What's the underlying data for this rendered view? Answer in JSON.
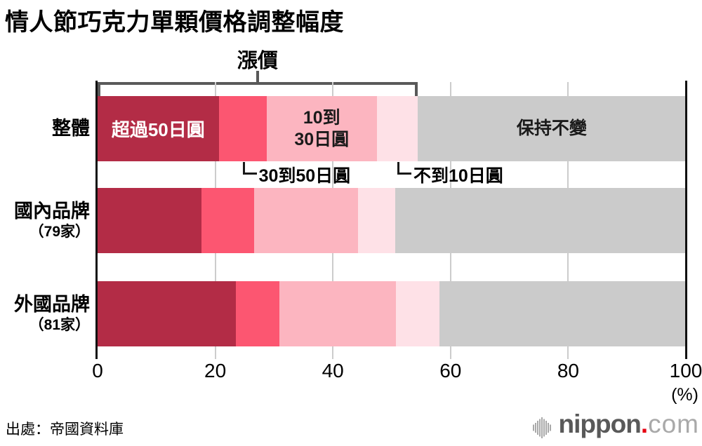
{
  "title": "情人節巧克力單顆價格調整幅度",
  "increase_label": "漲價",
  "rows": [
    {
      "label": "整體",
      "sublabel": ""
    },
    {
      "label": "國內品牌",
      "sublabel": "（79家）"
    },
    {
      "label": "外國品牌",
      "sublabel": "（81家）"
    }
  ],
  "segment_labels": {
    "over50": "超過50日圓",
    "s30to50": "30到50日圓",
    "s10to30_line1": "10到",
    "s10to30_line2": "30日圓",
    "under10": "不到10日圓",
    "unchanged": "保持不變"
  },
  "axis": {
    "ticks": [
      "0",
      "20",
      "40",
      "60",
      "80",
      "100"
    ],
    "unit": "(%)"
  },
  "source": "出處：帝國資料庫",
  "logo": {
    "name": "nippon",
    "dot": ".",
    "tld": "com"
  },
  "colors": {
    "over50": "#b32c46",
    "s30to50": "#fc5671",
    "s10to30": "#fcb5c0",
    "under10": "#fee1e7",
    "unchanged": "#cbcbcb",
    "bracket": "#595959",
    "grid": "#cccccc",
    "axis": "#111111",
    "logo_red": "#e60012"
  },
  "chart_data": {
    "type": "bar",
    "stacked": true,
    "orientation": "horizontal",
    "title": "情人節巧克力單顆價格調整幅度",
    "categories": [
      "整體",
      "國內品牌（79家）",
      "外國品牌（81家）"
    ],
    "x_ticks": [
      0,
      20,
      40,
      60,
      80,
      100
    ],
    "xlim": [
      0,
      100
    ],
    "unit": "%",
    "values_estimated_from_pixels": true,
    "series": [
      {
        "name": "超過50日圓",
        "color": "#b32c46",
        "values": [
          20.6,
          17.7,
          23.5
        ]
      },
      {
        "name": "30到50日圓",
        "color": "#fc5671",
        "values": [
          8.1,
          8.9,
          7.4
        ]
      },
      {
        "name": "10到30日圓",
        "color": "#fcb5c0",
        "values": [
          18.8,
          17.7,
          19.8
        ]
      },
      {
        "name": "不到10日圓",
        "color": "#fee1e7",
        "values": [
          6.9,
          6.3,
          7.4
        ]
      },
      {
        "name": "保持不變",
        "color": "#cbcbcb",
        "values": [
          45.6,
          49.4,
          41.9
        ]
      }
    ],
    "annotations": [
      "漲價 bracket spans the four price-increase segments of the 整體 bar (0 to ~54%)"
    ],
    "legend_position": "labels drawn on/around first bar",
    "grid": true
  }
}
